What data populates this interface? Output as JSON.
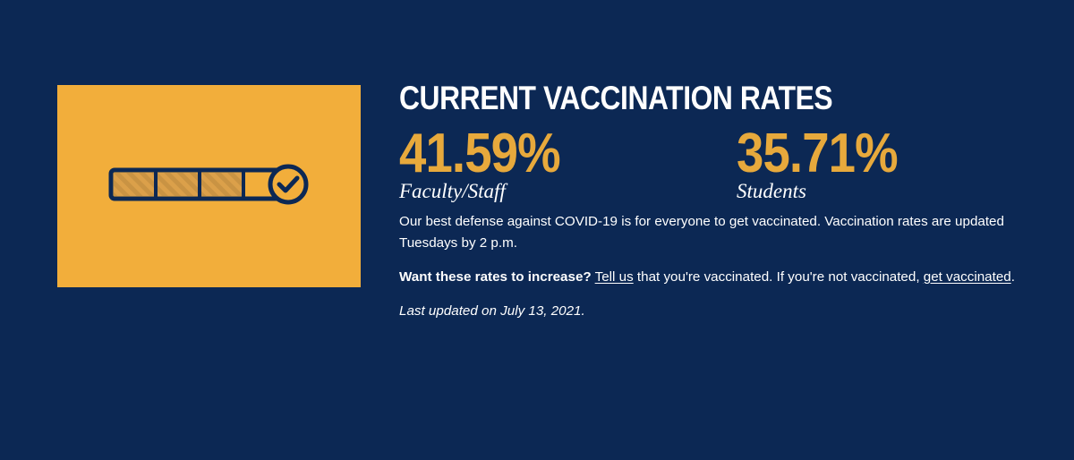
{
  "illustration": {
    "icon": "progress-bar-check-icon",
    "background_color": "#f2ae3b",
    "progress_segments_filled": 3,
    "progress_segments_total": 4
  },
  "heading": "CURRENT VACCINATION RATES",
  "stats": [
    {
      "value": "41.59%",
      "label": "Faculty/Staff"
    },
    {
      "value": "35.71%",
      "label": "Students"
    }
  ],
  "defense_text": "Our best defense against COVID-19 is for everyone to get vaccinated. Vaccination rates are updated Tuesdays by 2 p.m.",
  "cta": {
    "question": "Want these rates to increase?",
    "tell_us_link": "Tell us",
    "middle_text": " that you're vaccinated. If you're not vaccinated, ",
    "get_vaccinated_link": "get vaccinated",
    "end_text": "."
  },
  "last_updated": "Last updated on July 13, 2021.",
  "colors": {
    "background": "#0c2854",
    "accent_gold": "#e7a93c",
    "text": "#ffffff"
  }
}
